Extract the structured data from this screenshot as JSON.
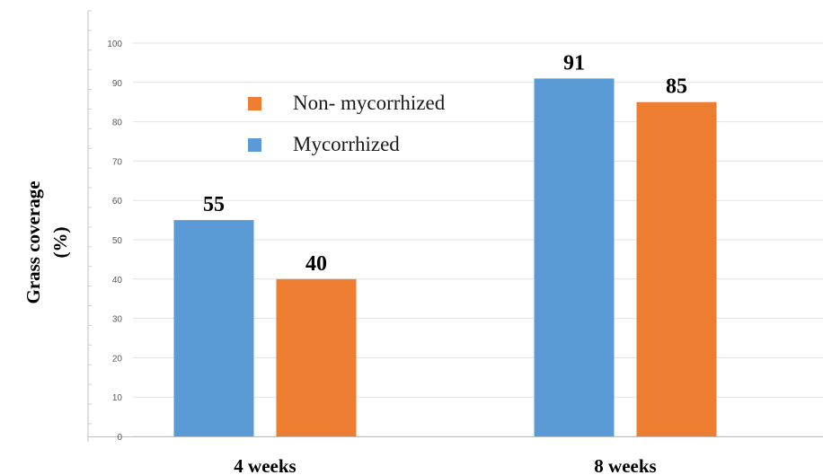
{
  "chart_data": {
    "type": "bar",
    "title": "",
    "xlabel": "",
    "ylabel": "Grass coverage",
    "ylabel_unit": "(%)",
    "categories": [
      "4 weeks",
      "8 weeks"
    ],
    "series": [
      {
        "name": "Mycorrhized",
        "values": [
          55,
          91
        ],
        "color": "#5b9bd5"
      },
      {
        "name": "Non- mycorrhized",
        "values": [
          40,
          85
        ],
        "color": "#ed7d31"
      }
    ],
    "ylim": [
      0,
      100
    ],
    "yticks": [
      0,
      10,
      20,
      30,
      40,
      50,
      60,
      70,
      80,
      90,
      100
    ],
    "grid": true,
    "legend_placement": "top-left-inside",
    "legend_order": [
      "Non- mycorrhized",
      "Mycorrhized"
    ]
  }
}
